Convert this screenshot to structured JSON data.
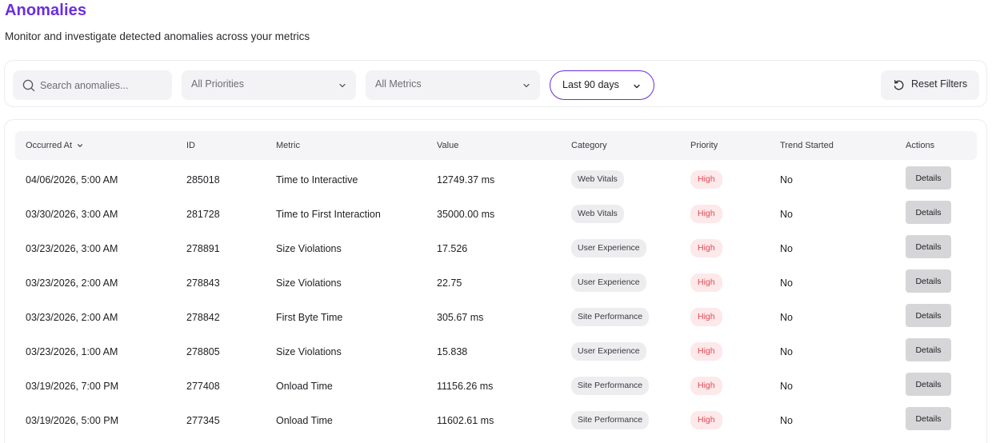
{
  "page": {
    "title": "Anomalies",
    "subtitle": "Monitor and investigate detected anomalies across your metrics"
  },
  "filters": {
    "search_placeholder": "Search anomalies...",
    "priority_value": "All Priorities",
    "metrics_value": "All Metrics",
    "range_value": "Last 90 days",
    "reset_label": "Reset Filters"
  },
  "icons": {
    "search": "search-icon",
    "chevron": "chevron-down-icon",
    "reset": "rotate-ccw-icon"
  },
  "colors": {
    "accent": "#6a2de0",
    "priority_high_text": "#e14a55",
    "priority_high_bg": "#fde8ea"
  },
  "table": {
    "headers": {
      "occurred_at": "Occurred At",
      "id": "ID",
      "metric": "Metric",
      "value": "Value",
      "category": "Category",
      "priority": "Priority",
      "trend_started": "Trend Started",
      "actions": "Actions"
    },
    "details_label": "Details",
    "rows": [
      {
        "occurred_at": "04/06/2026, 5:00 AM",
        "id": "285018",
        "metric": "Time to Interactive",
        "value": "12749.37 ms",
        "category": "Web Vitals",
        "priority": "High",
        "trend_started": "No"
      },
      {
        "occurred_at": "03/30/2026, 3:00 AM",
        "id": "281728",
        "metric": "Time to First Interaction",
        "value": "35000.00 ms",
        "category": "Web Vitals",
        "priority": "High",
        "trend_started": "No"
      },
      {
        "occurred_at": "03/23/2026, 3:00 AM",
        "id": "278891",
        "metric": "Size Violations",
        "value": "17.526",
        "category": "User Experience",
        "priority": "High",
        "trend_started": "No"
      },
      {
        "occurred_at": "03/23/2026, 2:00 AM",
        "id": "278843",
        "metric": "Size Violations",
        "value": "22.75",
        "category": "User Experience",
        "priority": "High",
        "trend_started": "No"
      },
      {
        "occurred_at": "03/23/2026, 2:00 AM",
        "id": "278842",
        "metric": "First Byte Time",
        "value": "305.67 ms",
        "category": "Site Performance",
        "priority": "High",
        "trend_started": "No"
      },
      {
        "occurred_at": "03/23/2026, 1:00 AM",
        "id": "278805",
        "metric": "Size Violations",
        "value": "15.838",
        "category": "User Experience",
        "priority": "High",
        "trend_started": "No"
      },
      {
        "occurred_at": "03/19/2026, 7:00 PM",
        "id": "277408",
        "metric": "Onload Time",
        "value": "11156.26 ms",
        "category": "Site Performance",
        "priority": "High",
        "trend_started": "No"
      },
      {
        "occurred_at": "03/19/2026, 5:00 PM",
        "id": "277345",
        "metric": "Onload Time",
        "value": "11602.61 ms",
        "category": "Site Performance",
        "priority": "High",
        "trend_started": "No"
      }
    ]
  }
}
